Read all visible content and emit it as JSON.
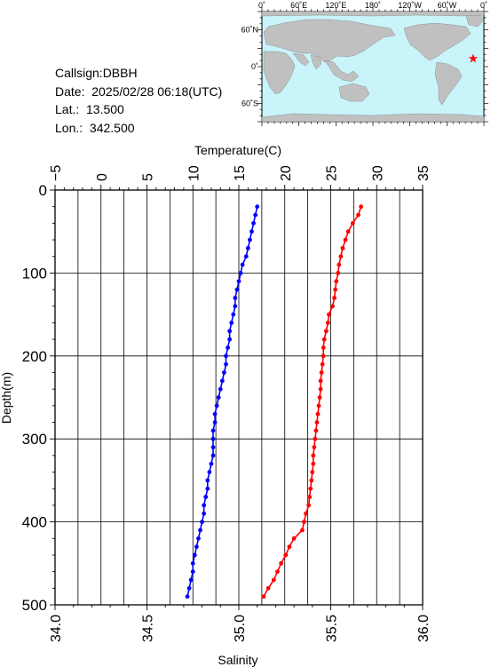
{
  "header": {
    "callsign": "Callsign:DBBH",
    "date": "Date:  2025/02/28 06:18(UTC)",
    "lat": "Lat.:  13.500",
    "lon": "Lon.:  342.500"
  },
  "map": {
    "top_labels": [
      "0˚",
      "60˚E",
      "120˚E",
      "180˚",
      "120˚W",
      "60˚W",
      "0˚"
    ],
    "left_labels": [
      "60˚N",
      "0˚",
      "60˚S"
    ],
    "ocean_color": "#c8f4fa",
    "land_color": "#c0c0c0",
    "marker_color": "#ff0000",
    "marker": {
      "lat": 13.5,
      "lon": 342.5
    }
  },
  "chart_data": {
    "type": "scatter",
    "y_axis": {
      "label": "Depth(m)",
      "range": [
        0,
        500
      ],
      "ticks": [
        "0",
        "100",
        "200",
        "300",
        "400",
        "500"
      ],
      "inverted": true
    },
    "x_top": {
      "label": "Temperature(C)",
      "range": [
        -5,
        35
      ],
      "ticks": [
        "−5",
        "0",
        "5",
        "10",
        "15",
        "20",
        "25",
        "30",
        "35"
      ]
    },
    "x_bottom": {
      "label": "Salinity",
      "range": [
        34.0,
        36.0
      ],
      "ticks": [
        "34.0",
        "34.5",
        "35.0",
        "35.5",
        "36.0"
      ]
    },
    "grid": true,
    "series": [
      {
        "axis": "temperature",
        "color": "#ff0000",
        "depth": [
          20,
          30,
          40,
          50,
          60,
          70,
          80,
          90,
          100,
          110,
          120,
          130,
          140,
          150,
          160,
          170,
          180,
          190,
          200,
          210,
          220,
          230,
          240,
          250,
          260,
          270,
          280,
          290,
          300,
          310,
          320,
          330,
          340,
          350,
          360,
          370,
          380,
          390,
          400,
          410,
          420,
          430,
          440,
          450,
          460,
          470,
          480,
          490
        ],
        "values": [
          28.3,
          28.0,
          27.4,
          26.9,
          26.6,
          26.3,
          26.1,
          25.9,
          25.8,
          25.6,
          25.5,
          25.4,
          25.2,
          24.8,
          24.7,
          24.5,
          24.3,
          24.2,
          24.2,
          24.1,
          24.0,
          23.9,
          23.9,
          23.8,
          23.7,
          23.6,
          23.5,
          23.4,
          23.3,
          23.2,
          23.1,
          23.1,
          23.0,
          22.9,
          22.8,
          22.7,
          22.6,
          22.3,
          22.1,
          21.9,
          21.0,
          20.5,
          20.1,
          19.6,
          19.2,
          18.8,
          18.2,
          17.7
        ]
      },
      {
        "axis": "salinity",
        "color": "#0000ff",
        "depth": [
          20,
          30,
          40,
          50,
          60,
          70,
          80,
          90,
          100,
          110,
          120,
          130,
          140,
          150,
          160,
          170,
          180,
          190,
          200,
          210,
          220,
          230,
          240,
          250,
          260,
          270,
          280,
          290,
          300,
          310,
          320,
          330,
          340,
          350,
          360,
          370,
          380,
          390,
          400,
          410,
          420,
          430,
          440,
          450,
          460,
          470,
          480,
          490
        ],
        "values": [
          35.1,
          35.09,
          35.08,
          35.07,
          35.06,
          35.05,
          35.04,
          35.02,
          35.01,
          35.0,
          34.99,
          34.98,
          34.98,
          34.97,
          34.96,
          34.95,
          34.95,
          34.94,
          34.93,
          34.93,
          34.92,
          34.91,
          34.9,
          34.89,
          34.88,
          34.87,
          34.87,
          34.86,
          34.86,
          34.86,
          34.86,
          34.85,
          34.84,
          34.83,
          34.83,
          34.82,
          34.81,
          34.81,
          34.8,
          34.79,
          34.78,
          34.77,
          34.76,
          34.75,
          34.75,
          34.74,
          34.73,
          34.72
        ]
      }
    ]
  }
}
